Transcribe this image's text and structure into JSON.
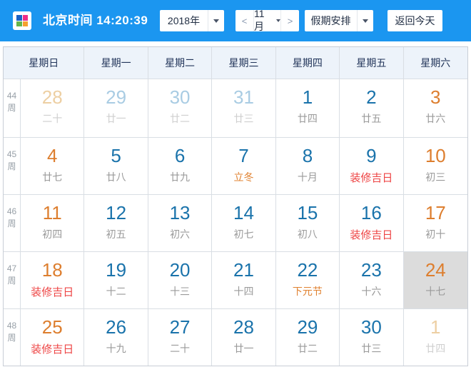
{
  "topbar": {
    "time_label": "北京时间 14:20:39",
    "year_select": "2018年",
    "prev_label": "<",
    "next_label": ">",
    "month_select": "11月",
    "holiday_button": "假期安排",
    "today_button": "返回今天"
  },
  "colors": {
    "topbar_bg": "#1b96f0",
    "header_bg": "#edf3fa",
    "weekday_number": "#1a73ab",
    "weekend_number": "#dd7e2e",
    "faded_weekday_number": "#a9cce3",
    "faded_weekend_number": "#edcfa3",
    "lunar_text": "#9a9a9a",
    "faded_lunar_text": "#cfcfcf",
    "festival_text": "#e0812f",
    "auspicious_text": "#ee4545",
    "today_cell_bg": "#dcdcdc",
    "logo_quadrants": [
      "#1961c5",
      "#ee2d87",
      "#63b54b",
      "#f5a02d"
    ]
  },
  "calendar": {
    "weekdays": [
      "星期日",
      "星期一",
      "星期二",
      "星期三",
      "星期四",
      "星期五",
      "星期六"
    ],
    "week_suffix": "周",
    "weeks": [
      {
        "num": "44",
        "cells": [
          {
            "day": "28",
            "sub": "二十",
            "tone": "faded-weekend",
            "sub_tone": "faded"
          },
          {
            "day": "29",
            "sub": "廿一",
            "tone": "faded-weekday",
            "sub_tone": "faded"
          },
          {
            "day": "30",
            "sub": "廿二",
            "tone": "faded-weekday",
            "sub_tone": "faded"
          },
          {
            "day": "31",
            "sub": "廿三",
            "tone": "faded-weekday",
            "sub_tone": "faded"
          },
          {
            "day": "1",
            "sub": "廿四",
            "tone": "weekday",
            "sub_tone": "lunar"
          },
          {
            "day": "2",
            "sub": "廿五",
            "tone": "weekday",
            "sub_tone": "lunar"
          },
          {
            "day": "3",
            "sub": "廿六",
            "tone": "weekend",
            "sub_tone": "lunar"
          }
        ]
      },
      {
        "num": "45",
        "cells": [
          {
            "day": "4",
            "sub": "廿七",
            "tone": "weekend",
            "sub_tone": "lunar"
          },
          {
            "day": "5",
            "sub": "廿八",
            "tone": "weekday",
            "sub_tone": "lunar"
          },
          {
            "day": "6",
            "sub": "廿九",
            "tone": "weekday",
            "sub_tone": "lunar"
          },
          {
            "day": "7",
            "sub": "立冬",
            "tone": "weekday",
            "sub_tone": "festival"
          },
          {
            "day": "8",
            "sub": "十月",
            "tone": "weekday",
            "sub_tone": "lunar"
          },
          {
            "day": "9",
            "sub": "装修吉日",
            "tone": "weekday",
            "sub_tone": "auspicious"
          },
          {
            "day": "10",
            "sub": "初三",
            "tone": "weekend",
            "sub_tone": "lunar"
          }
        ]
      },
      {
        "num": "46",
        "cells": [
          {
            "day": "11",
            "sub": "初四",
            "tone": "weekend",
            "sub_tone": "lunar"
          },
          {
            "day": "12",
            "sub": "初五",
            "tone": "weekday",
            "sub_tone": "lunar"
          },
          {
            "day": "13",
            "sub": "初六",
            "tone": "weekday",
            "sub_tone": "lunar"
          },
          {
            "day": "14",
            "sub": "初七",
            "tone": "weekday",
            "sub_tone": "lunar"
          },
          {
            "day": "15",
            "sub": "初八",
            "tone": "weekday",
            "sub_tone": "lunar"
          },
          {
            "day": "16",
            "sub": "装修吉日",
            "tone": "weekday",
            "sub_tone": "auspicious"
          },
          {
            "day": "17",
            "sub": "初十",
            "tone": "weekend",
            "sub_tone": "lunar"
          }
        ]
      },
      {
        "num": "47",
        "cells": [
          {
            "day": "18",
            "sub": "装修吉日",
            "tone": "weekend",
            "sub_tone": "auspicious"
          },
          {
            "day": "19",
            "sub": "十二",
            "tone": "weekday",
            "sub_tone": "lunar"
          },
          {
            "day": "20",
            "sub": "十三",
            "tone": "weekday",
            "sub_tone": "lunar"
          },
          {
            "day": "21",
            "sub": "十四",
            "tone": "weekday",
            "sub_tone": "lunar"
          },
          {
            "day": "22",
            "sub": "下元节",
            "tone": "weekday",
            "sub_tone": "festival"
          },
          {
            "day": "23",
            "sub": "十六",
            "tone": "weekday",
            "sub_tone": "lunar"
          },
          {
            "day": "24",
            "sub": "十七",
            "tone": "weekend",
            "sub_tone": "lunar",
            "today": true
          }
        ]
      },
      {
        "num": "48",
        "cells": [
          {
            "day": "25",
            "sub": "装修吉日",
            "tone": "weekend",
            "sub_tone": "auspicious"
          },
          {
            "day": "26",
            "sub": "十九",
            "tone": "weekday",
            "sub_tone": "lunar"
          },
          {
            "day": "27",
            "sub": "二十",
            "tone": "weekday",
            "sub_tone": "lunar"
          },
          {
            "day": "28",
            "sub": "廿一",
            "tone": "weekday",
            "sub_tone": "lunar"
          },
          {
            "day": "29",
            "sub": "廿二",
            "tone": "weekday",
            "sub_tone": "lunar"
          },
          {
            "day": "30",
            "sub": "廿三",
            "tone": "weekday",
            "sub_tone": "lunar"
          },
          {
            "day": "1",
            "sub": "廿四",
            "tone": "faded-weekend",
            "sub_tone": "faded"
          }
        ]
      }
    ]
  }
}
